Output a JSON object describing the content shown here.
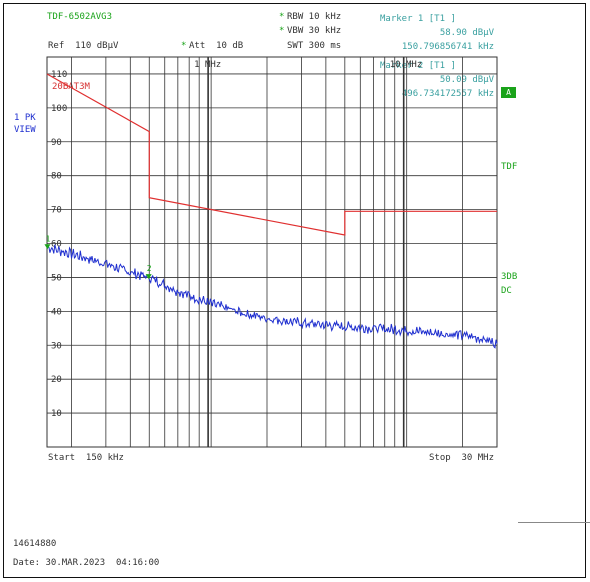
{
  "header": {
    "trace_label": "TDF-6502AVG3",
    "rbw": "RBW 10 kHz",
    "vbw": "VBW 30 kHz",
    "swt": "SWT 300 ms",
    "ref": "Ref  110 dBµV",
    "att": "Att  10 dB",
    "star1": "*",
    "star2": "*",
    "star3": "*"
  },
  "markers": {
    "m1_title": "Marker 1 [T1 ]",
    "m1_level": "58.90 dBµV",
    "m1_freq": "150.796856741 kHz",
    "m2_title": "Marker 2 [T1 ]",
    "m2_level": "50.09 dBµV",
    "m2_freq": "496.734172557 kHz"
  },
  "side_left": {
    "pk": "1 PK",
    "view": "VIEW"
  },
  "side_right": {
    "badge": "A",
    "tdf": "TDF",
    "db3": "3DB",
    "dc": "DC"
  },
  "limit_label": "20BAT3M",
  "footer": {
    "start": "Start  150 kHz",
    "stop": "Stop  30 MHz",
    "id": "14614880",
    "date": "Date: 30.MAR.2023  04:16:00"
  },
  "colors": {
    "trace": "#1f2fcf",
    "limit": "#e03030",
    "grid": "#333333",
    "marker": "#1aa31a"
  },
  "chart_data": {
    "type": "line",
    "x_scale": "log",
    "xlim": [
      150000,
      30000000
    ],
    "ylim": [
      0,
      115
    ],
    "y_ticks": [
      10,
      20,
      30,
      40,
      50,
      60,
      70,
      80,
      90,
      100,
      110
    ],
    "x_tick_labels": [
      {
        "x": 1000000,
        "label": "1 MHz"
      },
      {
        "x": 10000000,
        "label": "10 MHz"
      }
    ],
    "series": [
      {
        "name": "20BAT3M",
        "x": [
          150000,
          500000,
          500000,
          5000000,
          5000000,
          30000000
        ],
        "y": [
          110,
          93,
          73.5,
          62.5,
          69.5,
          69.5
        ]
      },
      {
        "name": "",
        "x": [
          150000,
          200000,
          300000,
          400000,
          500000,
          700000,
          1000000,
          1500000,
          2000000,
          3000000,
          4000000,
          5000000,
          7000000,
          10000000,
          15000000,
          20000000,
          25000000,
          30000000
        ],
        "y": [
          58.9,
          57,
          54,
          51.5,
          50,
          46,
          42.5,
          39.5,
          38,
          36.5,
          36,
          35.5,
          35,
          34.5,
          33.5,
          33,
          32,
          30.5
        ]
      }
    ],
    "markers": [
      {
        "label": "1",
        "x": 150796.856741,
        "y": 58.9
      },
      {
        "label": "2",
        "x": 496734.172557,
        "y": 50.09
      }
    ]
  }
}
